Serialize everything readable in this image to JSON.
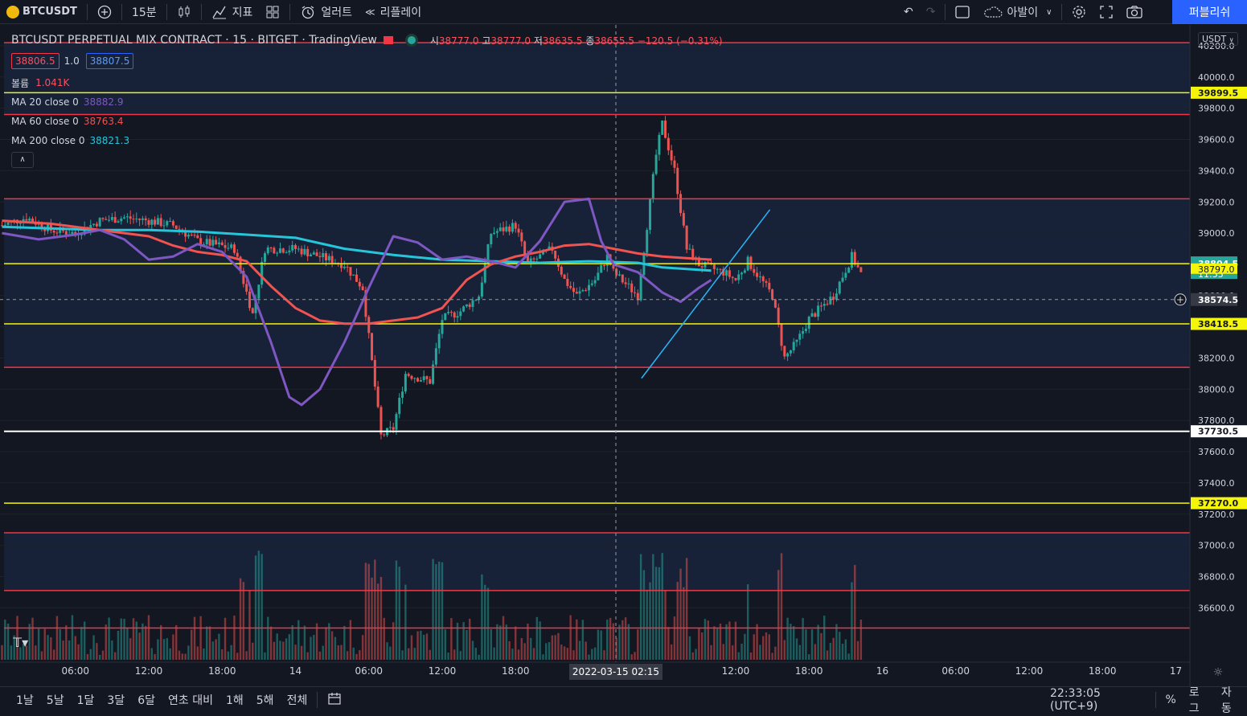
{
  "toolbar": {
    "symbol": "BTCUSDT",
    "interval": "15분",
    "indicators_label": "지표",
    "alert_label": "얼러트",
    "replay_label": "리플레이",
    "layout_name": "아발이",
    "publish_label": "퍼블리쉬"
  },
  "legend": {
    "title": "BTCUSDT PERPETUAL MIX CONTRACT · 15 · BITGET · TradingView",
    "o_label": "시",
    "o": "38777.0",
    "h_label": "고",
    "h": "38777.0",
    "l_label": "저",
    "l": "38635.5",
    "c_label": "종",
    "c": "38655.5",
    "change": "−120.5 (−0.31%)",
    "bid": "38806.5",
    "qty": "1.0",
    "ask": "38807.5",
    "volume_label": "볼륨",
    "volume": "1.041K",
    "ma20_label": "MA 20 close 0",
    "ma20": "38882.9",
    "ma60_label": "MA 60 close 0",
    "ma60": "38763.4",
    "ma200_label": "MA 200 close 0",
    "ma200": "38821.3"
  },
  "colors": {
    "ma20": "#7e57c2",
    "ma60": "#f05350",
    "ma200": "#26c6da",
    "up": "#26a69a",
    "down": "#ef5350",
    "hline_red": "#f23645",
    "hline_yellow": "#f5f50a",
    "hline_white": "#ffffff",
    "trend": "#29b6f6"
  },
  "currency": "USDT",
  "bottombar": {
    "ranges": [
      "1날",
      "5날",
      "1달",
      "3달",
      "6달",
      "연초 대비",
      "1해",
      "5해",
      "전체"
    ],
    "clock": "22:33:05 (UTC+9)",
    "pct": "%",
    "log": "로그",
    "auto": "자동"
  },
  "chart_data": {
    "type": "candlestick",
    "y_ticks": [
      40200,
      40000,
      39800,
      39600,
      39400,
      39200,
      39000,
      38800,
      38600,
      38400,
      38200,
      38000,
      37800,
      37600,
      37400,
      37200,
      37000,
      36800,
      36600
    ],
    "y_tick_labels": [
      "40200.0",
      "40000.0",
      "39800.0",
      "39600.0",
      "39400.0",
      "39200.0",
      "39000.0",
      "38800.0",
      "38600.0",
      "38400.0",
      "38200.0",
      "38000.0",
      "37800.0",
      "37600.0",
      "37400.0",
      "37200.0",
      "37000.0",
      "36800.0",
      "36600.0"
    ],
    "x_ticks": [
      "06:00",
      "12:00",
      "18:00",
      "14",
      "06:00",
      "12:00",
      "18:00",
      "15",
      "06:00",
      "12:00",
      "18:00",
      "16",
      "06:00",
      "12:00",
      "18:00",
      "17"
    ],
    "crosshair_date": "2022-03-15",
    "crosshair_time": "02:15",
    "hlines": [
      {
        "price": 40220,
        "color": "red"
      },
      {
        "price": 39899.5,
        "color": "yellow",
        "label": "39899.5"
      },
      {
        "price": 39760,
        "color": "red"
      },
      {
        "price": 39220,
        "color": "red"
      },
      {
        "price": 38804.5,
        "color": "yellow"
      },
      {
        "price": 38418.5,
        "color": "yellow",
        "label": "38418.5"
      },
      {
        "price": 38140,
        "color": "red"
      },
      {
        "price": 37730.5,
        "color": "white",
        "label": "37730.5"
      },
      {
        "price": 37270.0,
        "color": "yellow",
        "label": "37270.0"
      },
      {
        "price": 37080,
        "color": "red"
      },
      {
        "price": 36710,
        "color": "red"
      },
      {
        "price": 36470,
        "color": "red"
      }
    ],
    "price_tags": {
      "last": "38804.5",
      "countdown": "11:55",
      "ma": "38797.0",
      "crosshair": "38574.5"
    },
    "ma20_path": [
      [
        0,
        39000
      ],
      [
        3,
        38960
      ],
      [
        6,
        38990
      ],
      [
        8,
        39020
      ],
      [
        10,
        38960
      ],
      [
        12,
        38830
      ],
      [
        14,
        38850
      ],
      [
        16,
        38930
      ],
      [
        18,
        38880
      ],
      [
        20,
        38720
      ],
      [
        22,
        38300
      ],
      [
        23.5,
        37950
      ],
      [
        24.5,
        37900
      ],
      [
        26,
        38000
      ],
      [
        28,
        38300
      ],
      [
        30,
        38650
      ],
      [
        32,
        38980
      ],
      [
        34,
        38940
      ],
      [
        36,
        38830
      ],
      [
        38,
        38850
      ],
      [
        40,
        38820
      ],
      [
        42,
        38780
      ],
      [
        44,
        38950
      ],
      [
        46,
        39200
      ],
      [
        48,
        39220
      ],
      [
        49,
        38950
      ],
      [
        50,
        38800
      ],
      [
        52,
        38750
      ],
      [
        54,
        38620
      ],
      [
        55.5,
        38560
      ],
      [
        57,
        38650
      ],
      [
        58,
        38700
      ]
    ],
    "ma60_path": [
      [
        0,
        39080
      ],
      [
        4,
        39060
      ],
      [
        8,
        39020
      ],
      [
        12,
        38980
      ],
      [
        14,
        38920
      ],
      [
        16,
        38880
      ],
      [
        18,
        38860
      ],
      [
        20,
        38820
      ],
      [
        22,
        38660
      ],
      [
        24,
        38520
      ],
      [
        26,
        38440
      ],
      [
        28,
        38420
      ],
      [
        30,
        38420
      ],
      [
        32,
        38440
      ],
      [
        34,
        38460
      ],
      [
        36,
        38520
      ],
      [
        38,
        38700
      ],
      [
        40,
        38800
      ],
      [
        42,
        38850
      ],
      [
        44,
        38880
      ],
      [
        46,
        38920
      ],
      [
        48,
        38930
      ],
      [
        50,
        38900
      ],
      [
        52,
        38870
      ],
      [
        54,
        38850
      ],
      [
        56,
        38840
      ],
      [
        58,
        38830
      ]
    ],
    "ma200_path": [
      [
        0,
        39040
      ],
      [
        4,
        39030
      ],
      [
        8,
        39020
      ],
      [
        12,
        39020
      ],
      [
        16,
        39010
      ],
      [
        20,
        38990
      ],
      [
        24,
        38970
      ],
      [
        28,
        38900
      ],
      [
        32,
        38860
      ],
      [
        36,
        38830
      ],
      [
        40,
        38820
      ],
      [
        44,
        38810
      ],
      [
        48,
        38820
      ],
      [
        52,
        38810
      ],
      [
        54,
        38780
      ],
      [
        56,
        38770
      ],
      [
        58,
        38760
      ]
    ],
    "trend_line": [
      [
        52.3,
        38070
      ],
      [
        62.8,
        39150
      ]
    ]
  }
}
